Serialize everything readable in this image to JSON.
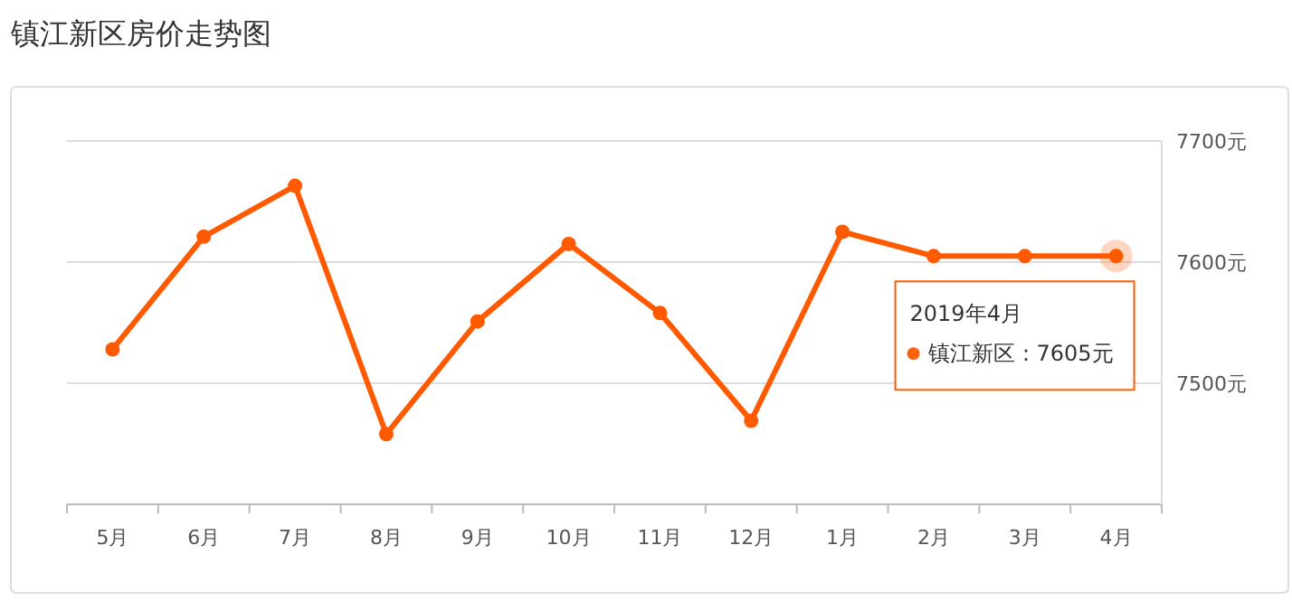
{
  "chart_data": {
    "type": "line",
    "title": "镇江新区房价走势图",
    "categories": [
      "5月",
      "6月",
      "7月",
      "8月",
      "9月",
      "10月",
      "11月",
      "12月",
      "1月",
      "2月",
      "3月",
      "4月"
    ],
    "series": [
      {
        "color": "#ff5a00",
        "values": [
          7528,
          7621,
          7663,
          7458,
          7551,
          7615,
          7558,
          7469,
          7625,
          7605,
          7605,
          7605
        ]
      }
    ],
    "ylim": [
      7400,
      7700
    ],
    "yticks": [
      {
        "value": 7400,
        "label": null
      },
      {
        "value": 7500,
        "label": "7500元"
      },
      {
        "value": 7600,
        "label": "7600元"
      },
      {
        "value": 7700,
        "label": "7700元"
      }
    ],
    "grid": "y",
    "marker": "circle",
    "line_style": "solid",
    "annotations": [
      "2019年4月",
      "镇江新区：7605元"
    ]
  }
}
